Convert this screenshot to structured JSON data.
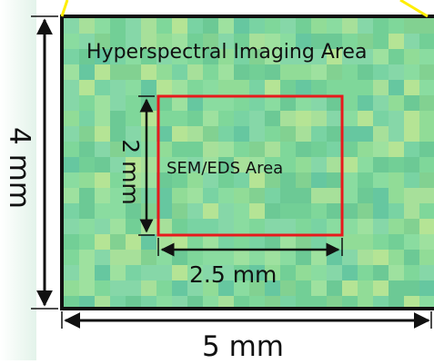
{
  "diagram": {
    "hyperspectral_area_label": "Hyperspectral Imaging Area",
    "sem_eds_area_label": "SEM/EDS Area",
    "outer_width_label": "5 mm",
    "outer_height_label": "4 mm",
    "inner_width_label": "2.5 mm",
    "inner_height_label": "2 mm"
  },
  "colors": {
    "outer_border": "#111111",
    "inner_border": "#e8191c",
    "connector_lines": "#ffee00",
    "map_base": "#7fd79a"
  }
}
